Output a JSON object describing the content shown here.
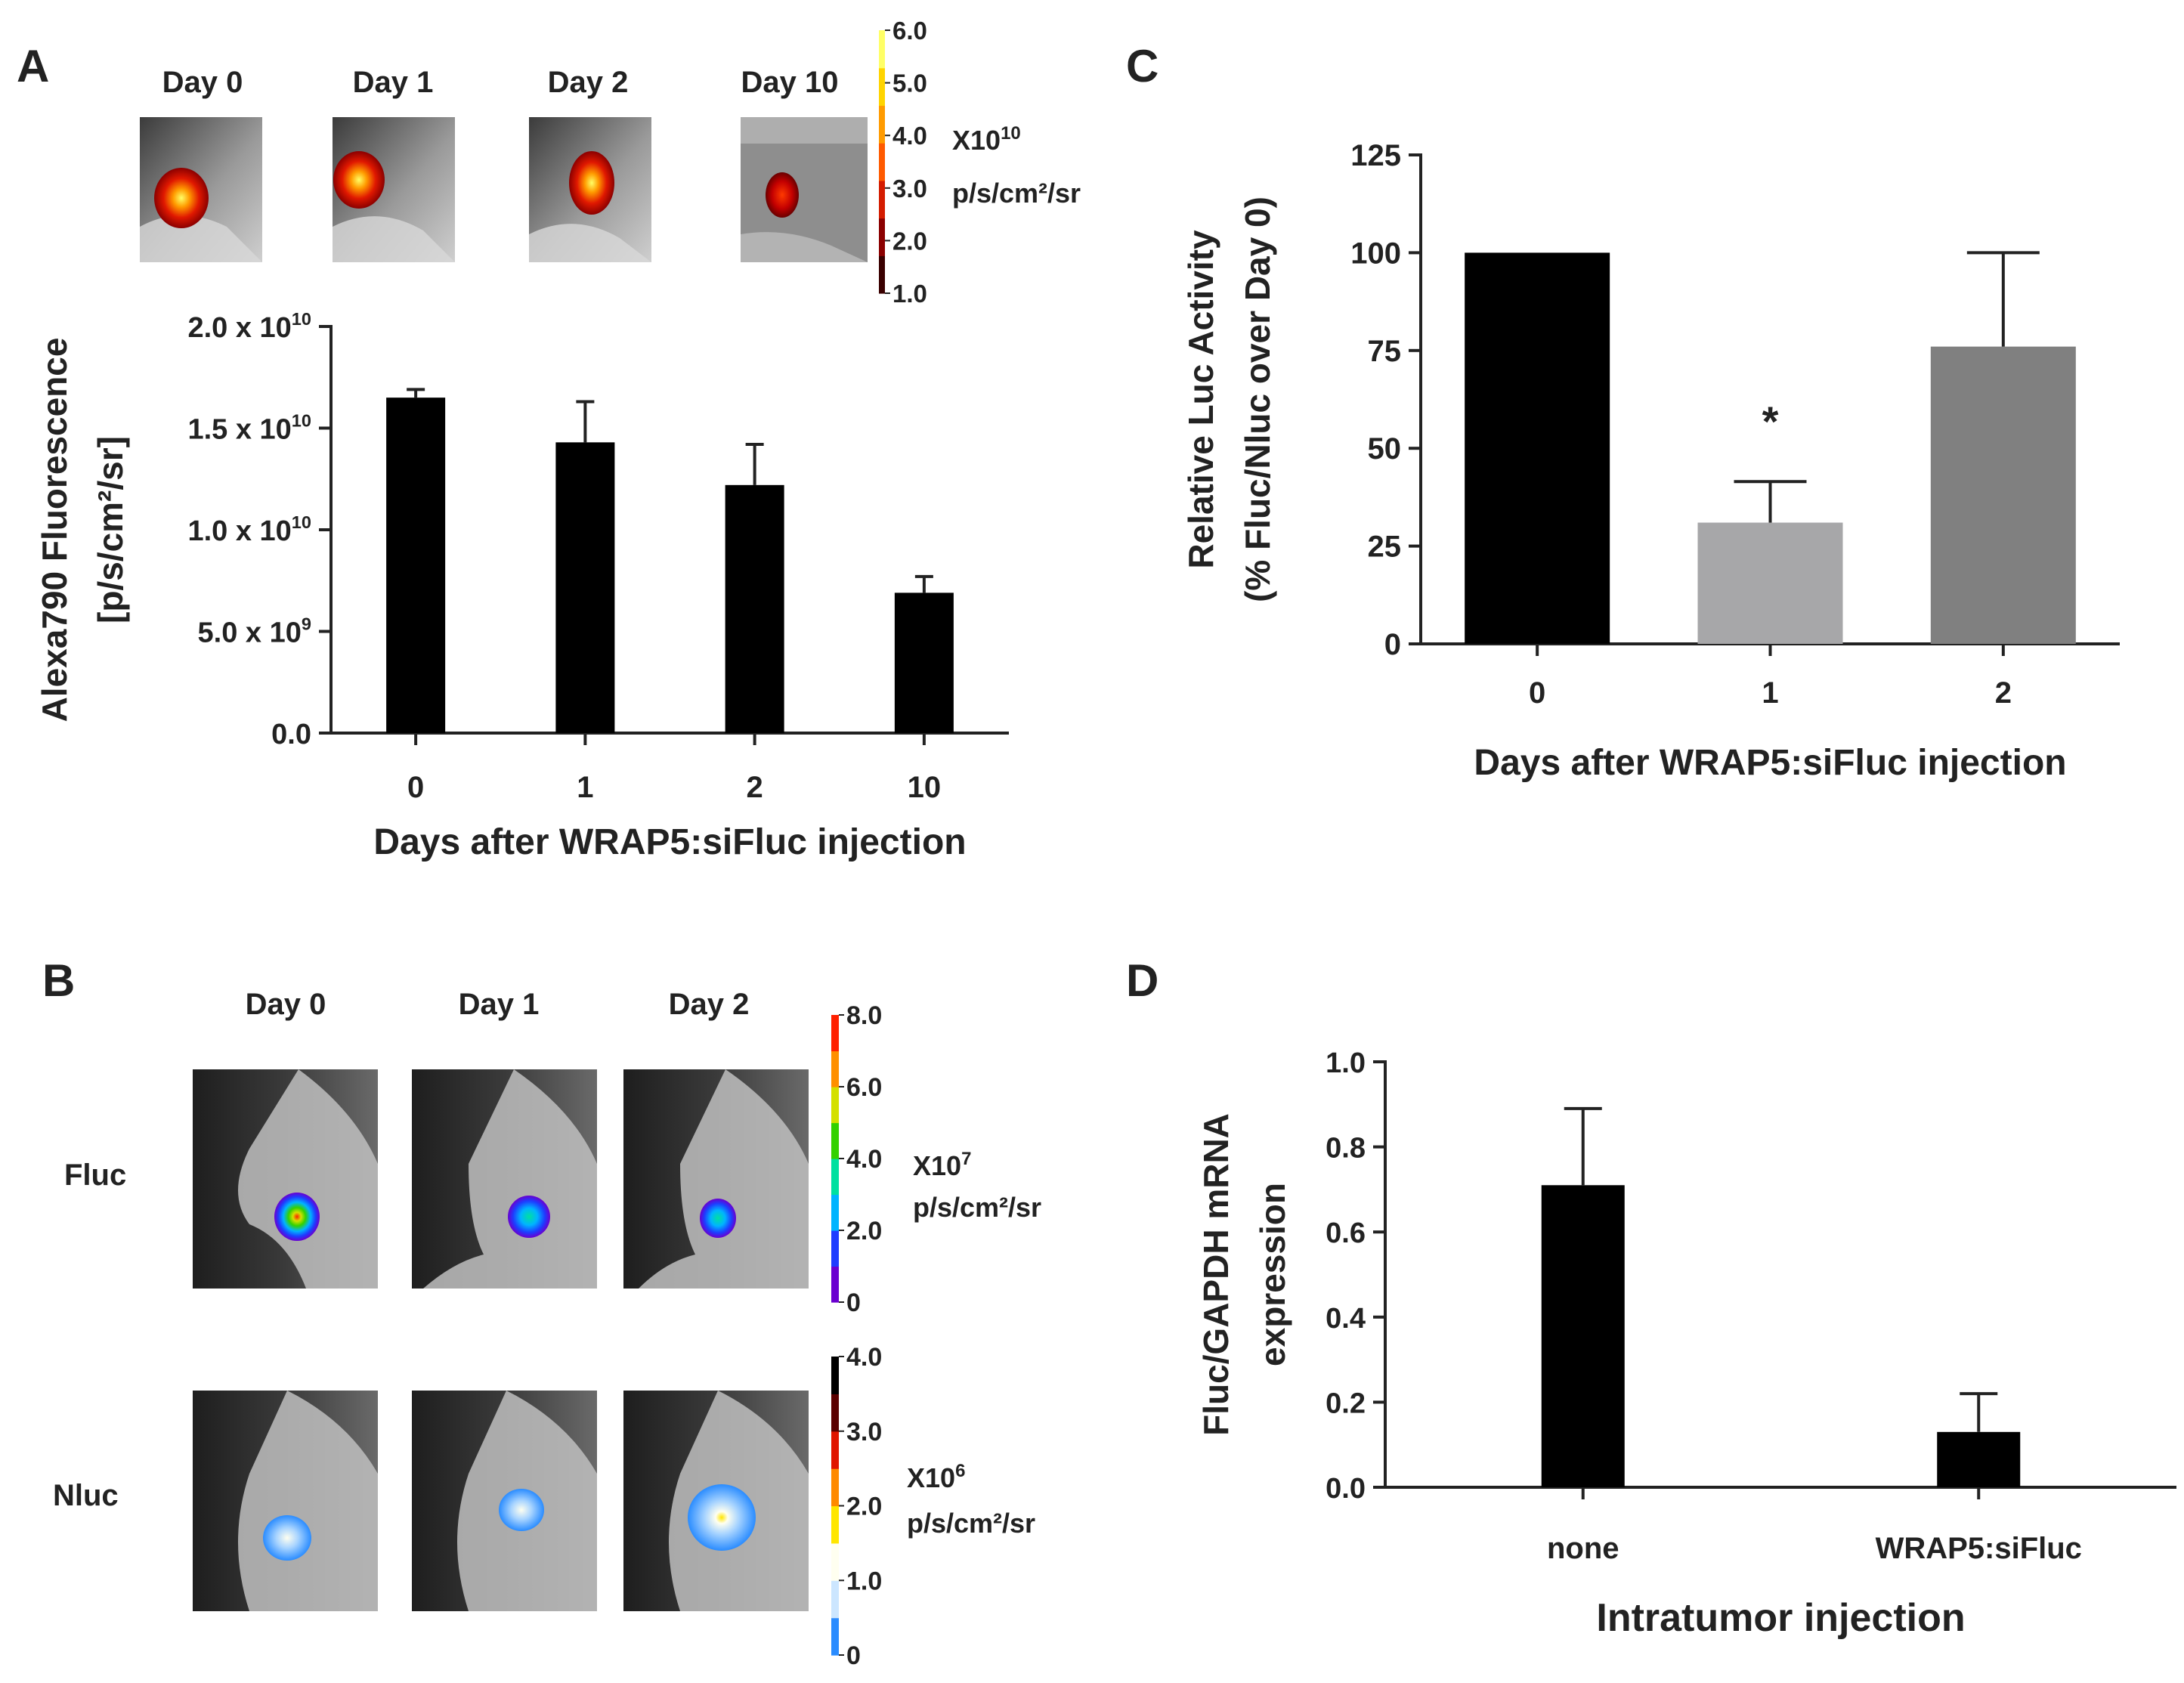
{
  "panel_letters": {
    "a": "A",
    "b": "B",
    "c": "C",
    "d": "D"
  },
  "panel_a": {
    "day_labels": [
      "Day 0",
      "Day 1",
      "Day 2",
      "Day 10"
    ],
    "scale": {
      "ticks": [
        "6.0",
        "5.0",
        "4.0",
        "3.0",
        "2.0",
        "1.0"
      ],
      "multiplier_base": "X10",
      "multiplier_exp": "10",
      "unit": "p/s/cm²/sr",
      "colors": [
        "#3a0000",
        "#8b0000",
        "#d41c00",
        "#ff5a00",
        "#ff9b00",
        "#ffd400",
        "#ffff66"
      ]
    }
  },
  "panel_b": {
    "day_labels": [
      "Day 0",
      "Day 1",
      "Day 2"
    ],
    "row_labels": [
      "Fluc",
      "Nluc"
    ],
    "fluc_scale": {
      "ticks": [
        "8.0",
        "6.0",
        "4.0",
        "2.0",
        "0"
      ],
      "multiplier_base": "X10",
      "multiplier_exp": "7",
      "unit": "p/s/cm²/sr",
      "colors": [
        "#6a00d0",
        "#1e3cff",
        "#00b4ff",
        "#00e0a0",
        "#33d100",
        "#d4e000",
        "#ff9000",
        "#ff2000"
      ]
    },
    "nluc_scale": {
      "ticks": [
        "4.0",
        "3.0",
        "2.0",
        "1.0",
        "0"
      ],
      "multiplier_base": "X10",
      "multiplier_exp": "6",
      "unit": "p/s/cm²/sr",
      "colors": [
        "#2a8cff",
        "#cce6ff",
        "#fffff0",
        "#ffe600",
        "#ff8a00",
        "#e01500",
        "#5a0000",
        "#000000"
      ]
    }
  },
  "chart_data": [
    {
      "id": "A",
      "type": "bar",
      "categories": [
        "0",
        "1",
        "2",
        "10"
      ],
      "values": [
        16500000000,
        14300000000,
        12200000000,
        6900000000
      ],
      "errors": [
        400000000,
        2000000000,
        2000000000,
        800000000
      ],
      "ylim": [
        0,
        20000000000
      ],
      "yticks": [
        {
          "value": 0,
          "base": "0.0",
          "exp": ""
        },
        {
          "value": 5000000000,
          "base": "5.0 x 10",
          "exp": "9"
        },
        {
          "value": 10000000000,
          "base": "1.0 x 10",
          "exp": "10"
        },
        {
          "value": 15000000000,
          "base": "1.5 x 10",
          "exp": "10"
        },
        {
          "value": 20000000000,
          "base": "2.0 x 10",
          "exp": "10"
        }
      ],
      "ylabel_lines": [
        "Alexa790 Fluorescence",
        "[p/s/cm²/sr]"
      ],
      "xlabel": "Days after WRAP5:siFluc injection",
      "colors": [
        "#000000",
        "#000000",
        "#000000",
        "#000000"
      ],
      "title": ""
    },
    {
      "id": "C",
      "type": "bar",
      "categories": [
        "0",
        "1",
        "2"
      ],
      "values": [
        100,
        31,
        76
      ],
      "errors": [
        0,
        10.5,
        24
      ],
      "annotations": [
        "",
        "*",
        ""
      ],
      "ylim": [
        0,
        125
      ],
      "yticks": [
        {
          "value": 0,
          "base": "0",
          "exp": ""
        },
        {
          "value": 25,
          "base": "25",
          "exp": ""
        },
        {
          "value": 50,
          "base": "50",
          "exp": ""
        },
        {
          "value": 75,
          "base": "75",
          "exp": ""
        },
        {
          "value": 100,
          "base": "100",
          "exp": ""
        },
        {
          "value": 125,
          "base": "125",
          "exp": ""
        }
      ],
      "ylabel_lines": [
        "Relative Luc Activity",
        "(% Fluc/Nluc over Day 0)"
      ],
      "xlabel": "Days after WRAP5:siFluc injection",
      "colors": [
        "#000000",
        "#a7a7a9",
        "#808080"
      ],
      "title": ""
    },
    {
      "id": "D",
      "type": "bar",
      "categories": [
        "none",
        "WRAP5:siFluc"
      ],
      "values": [
        0.71,
        0.13
      ],
      "errors": [
        0.18,
        0.09
      ],
      "ylim": [
        0,
        1.0
      ],
      "yticks": [
        {
          "value": 0,
          "base": "0.0",
          "exp": ""
        },
        {
          "value": 0.2,
          "base": "0.2",
          "exp": ""
        },
        {
          "value": 0.4,
          "base": "0.4",
          "exp": ""
        },
        {
          "value": 0.6,
          "base": "0.6",
          "exp": ""
        },
        {
          "value": 0.8,
          "base": "0.8",
          "exp": ""
        },
        {
          "value": 1.0,
          "base": "1.0",
          "exp": ""
        }
      ],
      "ylabel_lines": [
        "Fluc/GAPDH mRNA",
        "expression"
      ],
      "xlabel": "Intratumor injection",
      "colors": [
        "#000000",
        "#000000"
      ],
      "title": ""
    }
  ]
}
